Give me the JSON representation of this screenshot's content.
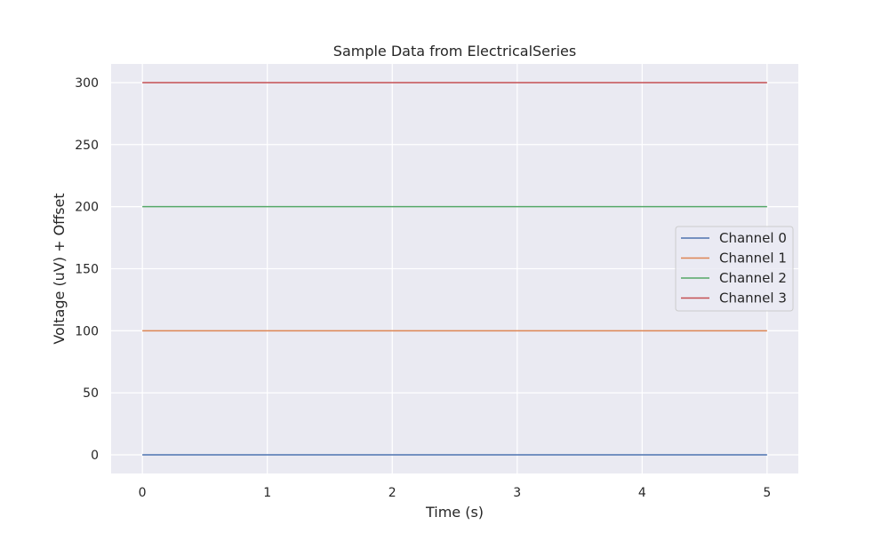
{
  "chart_data": {
    "type": "line",
    "title": "Sample Data from ElectricalSeries",
    "xlabel": "Time (s)",
    "ylabel": "Voltage (uV) + Offset",
    "xlim": [
      -0.25,
      5.25
    ],
    "ylim": [
      -15,
      315
    ],
    "xticks": [
      0,
      1,
      2,
      3,
      4,
      5
    ],
    "yticks": [
      0,
      50,
      100,
      150,
      200,
      250,
      300
    ],
    "grid": true,
    "legend_position": "center-right",
    "background_color": "#eaeaf2",
    "grid_color": "#ffffff",
    "series": [
      {
        "name": "Channel 0",
        "color": "#4c72b0",
        "x": [
          0,
          5
        ],
        "y": [
          0,
          0
        ]
      },
      {
        "name": "Channel 1",
        "color": "#dd8452",
        "x": [
          0,
          5
        ],
        "y": [
          100,
          100
        ]
      },
      {
        "name": "Channel 2",
        "color": "#55a868",
        "x": [
          0,
          5
        ],
        "y": [
          200,
          200
        ]
      },
      {
        "name": "Channel 3",
        "color": "#c44e52",
        "x": [
          0,
          5
        ],
        "y": [
          300,
          300
        ]
      }
    ]
  }
}
